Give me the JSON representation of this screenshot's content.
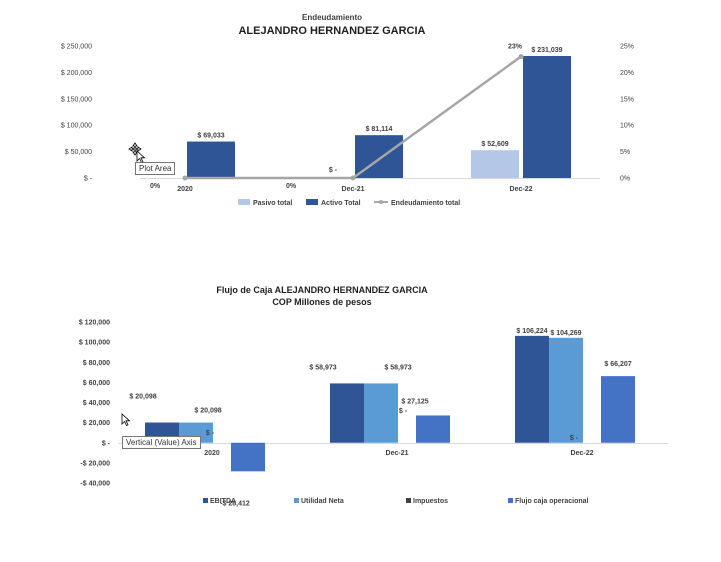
{
  "tooltips": {
    "plot_area": "Plot Area",
    "value_axis": "Vertical (Value) Axis"
  },
  "chart1": {
    "title1": "Endeudamiento",
    "title2": "ALEJANDRO HERNANDEZ GARCIA",
    "type": "bar",
    "categories": [
      "2020",
      "Dec-21",
      "Dec-22"
    ],
    "y_left_ticks": [
      "$ 250,000",
      "$ 200,000",
      "$ 150,000",
      "$ 100,000",
      "$ 50,000",
      "$ -"
    ],
    "y_right_ticks": [
      "25%",
      "20%",
      "15%",
      "10%",
      "5%",
      "0%"
    ],
    "ylim_left": [
      0,
      250000
    ],
    "ylim_right": [
      0,
      25
    ],
    "legend_position": "bottom",
    "series": [
      {
        "name": "Pasivo total",
        "color": "#b4c7e7",
        "values": [
          0,
          0,
          52609
        ],
        "labels": [
          "",
          "$ -",
          "$ 52,609"
        ]
      },
      {
        "name": "Activo Total",
        "color": "#2f5597",
        "values": [
          69033,
          81114,
          231039
        ],
        "labels": [
          "$ 69,033",
          "$ 81,114",
          "$ 231,039"
        ]
      }
    ],
    "line": {
      "name": "Endeudamiento total",
      "color": "#a6a6a6",
      "values": [
        0,
        0,
        23
      ],
      "labels": [
        "0%",
        "0%",
        "23%"
      ]
    }
  },
  "chart2": {
    "title1": "Flujo de Caja ALEJANDRO HERNANDEZ GARCIA",
    "title2": "COP Millones de pesos",
    "type": "bar",
    "categories": [
      "2020",
      "Dec-21",
      "Dec-22"
    ],
    "y_ticks": [
      "$ 120,000",
      "$ 100,000",
      "$ 80,000",
      "$ 60,000",
      "$ 40,000",
      "$ 20,000",
      "$ -",
      "-$ 20,000",
      "-$ 40,000"
    ],
    "ylim": [
      -40000,
      120000
    ],
    "legend_position": "bottom",
    "series": [
      {
        "name": "EBITDA",
        "color": "#2f5597",
        "values": [
          20098,
          58973,
          106224
        ],
        "labels": [
          "$ 20,098",
          "$ 58,973",
          "$ 106,224"
        ]
      },
      {
        "name": "Utilidad Neta",
        "color": "#5b9bd5",
        "values": [
          20098,
          58973,
          104269
        ],
        "labels": [
          "$ 20,098",
          "$ 58,973",
          "$ 104,269"
        ]
      },
      {
        "name": "Impuestos",
        "color": "#404040",
        "values": [
          0,
          0,
          0
        ],
        "labels": [
          "$ -",
          "$ -",
          "$ -"
        ]
      },
      {
        "name": "Flujo caja operacional",
        "color": "#4472c4",
        "values": [
          -28412,
          27125,
          66207
        ],
        "labels": [
          "-$ 28,412",
          "$ 27,125",
          "$ 66,207"
        ]
      }
    ]
  }
}
